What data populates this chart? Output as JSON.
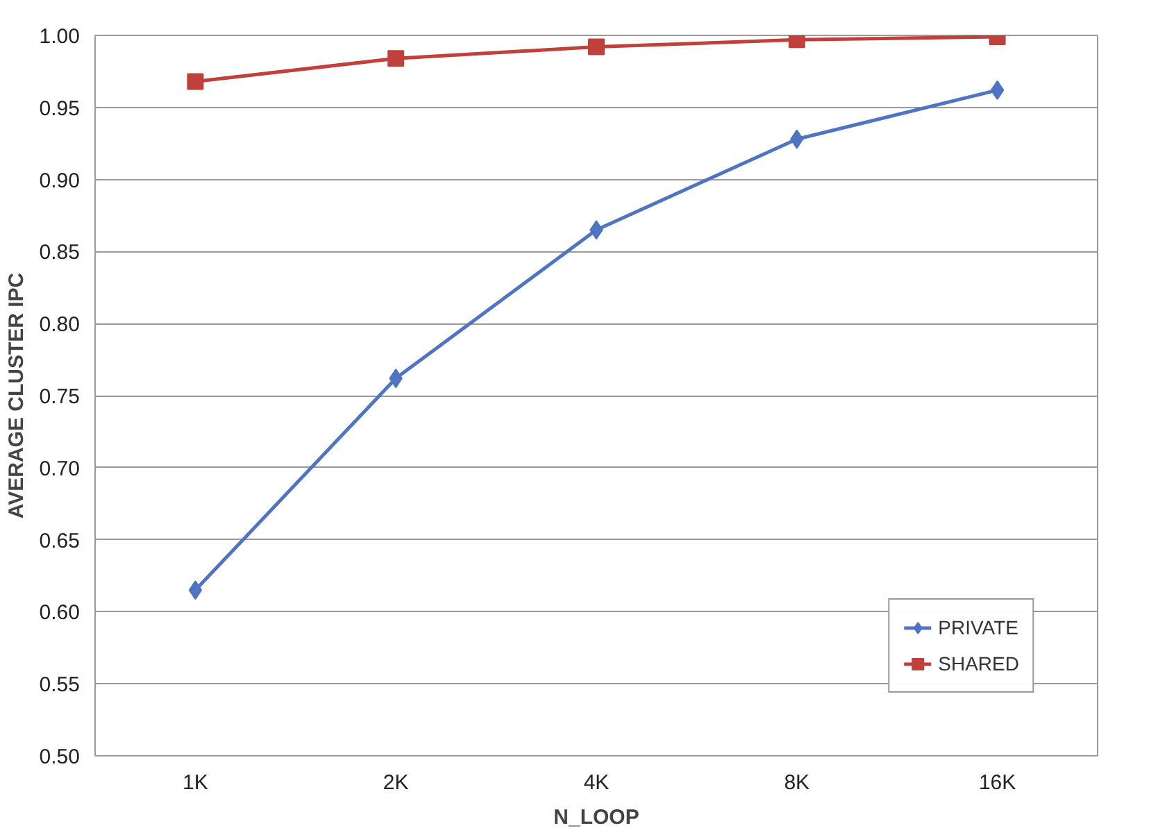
{
  "chart_data": {
    "type": "line",
    "xlabel": "N_LOOP",
    "ylabel": "AVERAGE CLUSTER IPC",
    "categories": [
      "1K",
      "2K",
      "4K",
      "8K",
      "16K"
    ],
    "series": [
      {
        "name": "PRIVATE",
        "color": "#4f74c2",
        "marker": "diamond",
        "values": [
          0.615,
          0.762,
          0.865,
          0.928,
          0.962
        ]
      },
      {
        "name": "SHARED",
        "color": "#c0403c",
        "marker": "square",
        "values": [
          0.968,
          0.984,
          0.992,
          0.997,
          0.999
        ]
      }
    ],
    "ylim": [
      0.5,
      1.0
    ],
    "yticks": [
      {
        "value": 0.5,
        "label": "0.50"
      },
      {
        "value": 0.55,
        "label": "0.55"
      },
      {
        "value": 0.6,
        "label": "0.60"
      },
      {
        "value": 0.65,
        "label": "0.65"
      },
      {
        "value": 0.7,
        "label": "0.70"
      },
      {
        "value": 0.75,
        "label": "0.75"
      },
      {
        "value": 0.8,
        "label": "0.80"
      },
      {
        "value": 0.85,
        "label": "0.85"
      },
      {
        "value": 0.9,
        "label": "0.90"
      },
      {
        "value": 0.95,
        "label": "0.95"
      },
      {
        "value": 1.0,
        "label": "1.00"
      }
    ],
    "grid": "y",
    "legend": "bottom right",
    "line_style": "solid"
  }
}
